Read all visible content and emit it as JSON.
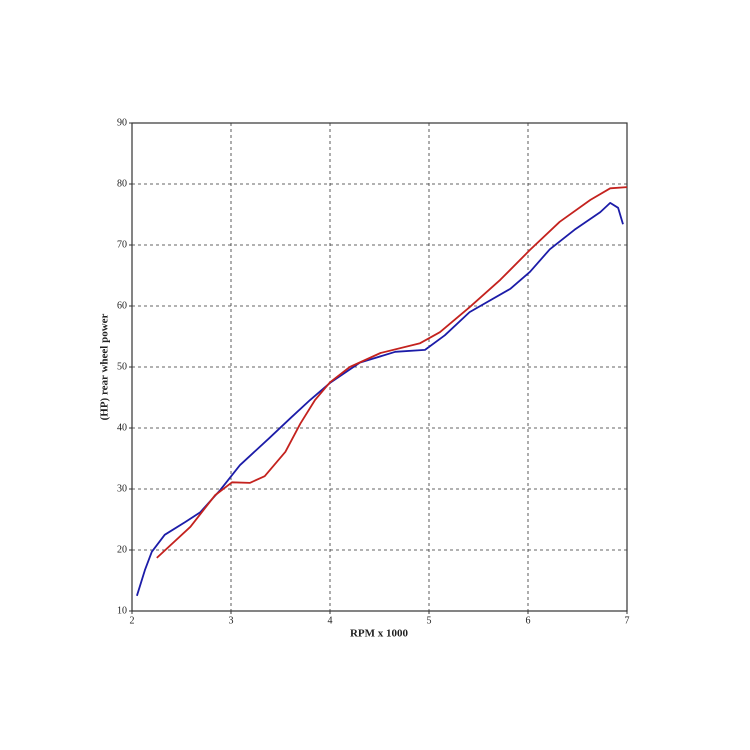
{
  "chart_data": {
    "type": "line",
    "x_label": "RPM x 1000",
    "y_label": "(HP) rear wheel power",
    "xlim": [
      2,
      7
    ],
    "xticks": [
      2,
      3,
      4,
      5,
      6,
      7
    ],
    "ylim": [
      10,
      90
    ],
    "yticks": [
      10,
      20,
      30,
      40,
      50,
      60,
      70,
      80,
      90
    ],
    "grid": true,
    "series": [
      {
        "color": "#1c1ca8",
        "x": [
          2.05,
          2.13,
          2.2,
          2.33,
          2.54,
          2.69,
          2.89,
          3.09,
          3.39,
          3.6,
          3.8,
          4.0,
          4.3,
          4.66,
          4.96,
          5.16,
          5.41,
          5.82,
          6.02,
          6.22,
          6.47,
          6.73,
          6.83,
          6.91,
          6.96
        ],
        "values": [
          12.5,
          16.7,
          19.7,
          22.5,
          24.6,
          26.2,
          29.8,
          33.9,
          38.4,
          41.6,
          44.6,
          47.4,
          50.7,
          52.5,
          52.8,
          55.2,
          59.0,
          62.8,
          65.6,
          69.3,
          72.5,
          75.4,
          76.9,
          76.1,
          73.4
        ]
      },
      {
        "color": "#c4221e",
        "x": [
          2.25,
          2.59,
          2.84,
          3.01,
          3.19,
          3.34,
          3.55,
          3.7,
          3.85,
          4.0,
          4.2,
          4.51,
          4.91,
          5.11,
          5.41,
          5.72,
          6.02,
          6.32,
          6.63,
          6.83,
          7.0
        ],
        "values": [
          18.7,
          23.8,
          29.0,
          31.1,
          31.0,
          32.1,
          36.1,
          40.7,
          44.6,
          47.5,
          50.0,
          52.3,
          53.9,
          55.7,
          59.8,
          64.3,
          69.2,
          73.8,
          77.4,
          79.3,
          79.5
        ]
      }
    ]
  }
}
